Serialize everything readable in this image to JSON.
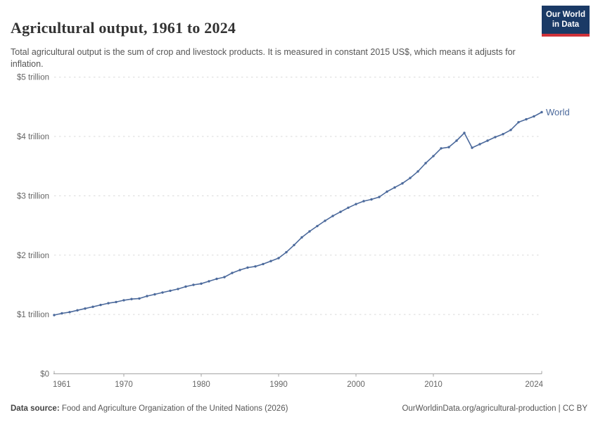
{
  "header": {
    "title": "Agricultural output, 1961 to 2024",
    "subtitle": "Total agricultural output is the sum of crop and livestock products. It is measured in constant 2015 US$, which means it adjusts for inflation.",
    "logo": {
      "line1": "Our World",
      "line2": "in Data",
      "bg_color": "#1a3a66",
      "accent_color": "#cf3139"
    }
  },
  "chart_data": {
    "type": "line",
    "title": "Agricultural output, 1961 to 2024",
    "ylabel": "",
    "xlabel": "",
    "unit": "constant 2015 US$, trillions",
    "grid": "dashed-horizontal",
    "legend_position": "end-of-line-label",
    "xlim": [
      1961,
      2024
    ],
    "ylim": [
      0,
      5
    ],
    "y_ticks": [
      {
        "value": 0,
        "label": "$0"
      },
      {
        "value": 1,
        "label": "$1 trillion"
      },
      {
        "value": 2,
        "label": "$2 trillion"
      },
      {
        "value": 3,
        "label": "$3 trillion"
      },
      {
        "value": 4,
        "label": "$4 trillion"
      },
      {
        "value": 5,
        "label": "$5 trillion"
      }
    ],
    "x_ticks": [
      {
        "value": 1961,
        "label": "1961"
      },
      {
        "value": 1970,
        "label": "1970"
      },
      {
        "value": 1980,
        "label": "1980"
      },
      {
        "value": 1990,
        "label": "1990"
      },
      {
        "value": 2000,
        "label": "2000"
      },
      {
        "value": 2010,
        "label": "2010"
      },
      {
        "value": 2024,
        "label": "2024"
      }
    ],
    "end_label": "World",
    "series": [
      {
        "name": "World",
        "color": "#4c6a9c",
        "x": [
          1961,
          1962,
          1963,
          1964,
          1965,
          1966,
          1967,
          1968,
          1969,
          1970,
          1971,
          1972,
          1973,
          1974,
          1975,
          1976,
          1977,
          1978,
          1979,
          1980,
          1981,
          1982,
          1983,
          1984,
          1985,
          1986,
          1987,
          1988,
          1989,
          1990,
          1991,
          1992,
          1993,
          1994,
          1995,
          1996,
          1997,
          1998,
          1999,
          2000,
          2001,
          2002,
          2003,
          2004,
          2005,
          2006,
          2007,
          2008,
          2009,
          2010,
          2011,
          2012,
          2013,
          2014,
          2015,
          2016,
          2017,
          2018,
          2019,
          2020,
          2021,
          2022,
          2023,
          2024
        ],
        "values": [
          0.99,
          1.02,
          1.04,
          1.07,
          1.1,
          1.13,
          1.16,
          1.19,
          1.21,
          1.24,
          1.26,
          1.27,
          1.31,
          1.34,
          1.37,
          1.4,
          1.43,
          1.47,
          1.5,
          1.52,
          1.56,
          1.6,
          1.63,
          1.7,
          1.75,
          1.79,
          1.81,
          1.85,
          1.9,
          1.95,
          2.05,
          2.17,
          2.3,
          2.4,
          2.49,
          2.58,
          2.66,
          2.73,
          2.8,
          2.86,
          2.91,
          2.94,
          2.98,
          3.07,
          3.14,
          3.21,
          3.3,
          3.41,
          3.55,
          3.67,
          3.8,
          3.82,
          3.93,
          4.06,
          3.81,
          3.87,
          3.93,
          3.99,
          4.04,
          4.11,
          4.24,
          4.29,
          4.34,
          4.41
        ]
      }
    ]
  },
  "footer": {
    "source_label": "Data source:",
    "source_text": " Food and Agriculture Organization of the United Nations (2026)",
    "right_text": "OurWorldinData.org/agricultural-production | CC BY"
  }
}
